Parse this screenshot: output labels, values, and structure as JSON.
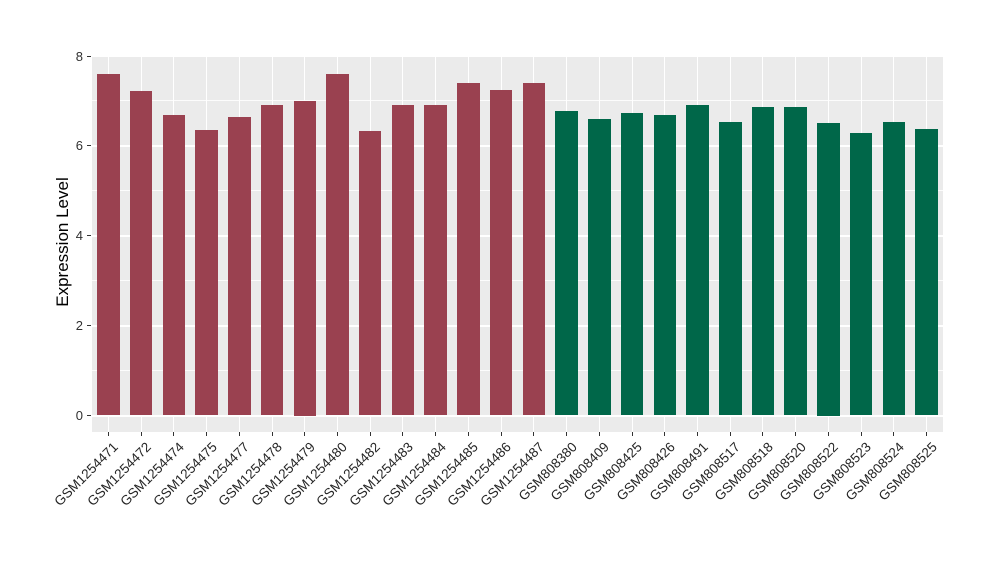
{
  "style": {
    "figure_background": "#ffffff",
    "panel_background": "#ebebeb",
    "gridline_color": "#ffffff",
    "tick_mark_color": "#333333",
    "axis_text_color": "#303030",
    "axis_title_color": "#000000",
    "group_colors": {
      "maroon": "#9a4150",
      "green": "#006749"
    }
  },
  "chart_data": {
    "type": "bar",
    "ylabel": "Expression Level",
    "ylim": [
      0,
      8
    ],
    "yticks": [
      0,
      2,
      4,
      6,
      8
    ],
    "yticks_minor": [
      1,
      3,
      5,
      7
    ],
    "grid": "on",
    "legend": "none",
    "categories": [
      "GSM1254471",
      "GSM1254472",
      "GSM1254474",
      "GSM1254475",
      "GSM1254477",
      "GSM1254478",
      "GSM1254479",
      "GSM1254480",
      "GSM1254482",
      "GSM1254483",
      "GSM1254484",
      "GSM1254485",
      "GSM1254486",
      "GSM1254487",
      "GSM808380",
      "GSM808409",
      "GSM808425",
      "GSM808426",
      "GSM808491",
      "GSM808517",
      "GSM808518",
      "GSM808520",
      "GSM808522",
      "GSM808523",
      "GSM808524",
      "GSM808525"
    ],
    "values": [
      7.61,
      7.22,
      6.69,
      6.36,
      6.65,
      6.9,
      7.0,
      7.59,
      6.32,
      6.92,
      6.92,
      7.4,
      7.24,
      7.39,
      6.78,
      6.6,
      6.73,
      6.68,
      6.92,
      6.54,
      6.86,
      6.87,
      6.5,
      6.28,
      6.53,
      6.38
    ],
    "bar_groups": [
      "maroon",
      "maroon",
      "maroon",
      "maroon",
      "maroon",
      "maroon",
      "maroon",
      "maroon",
      "maroon",
      "maroon",
      "maroon",
      "maroon",
      "maroon",
      "maroon",
      "green",
      "green",
      "green",
      "green",
      "green",
      "green",
      "green",
      "green",
      "green",
      "green",
      "green",
      "green"
    ]
  }
}
